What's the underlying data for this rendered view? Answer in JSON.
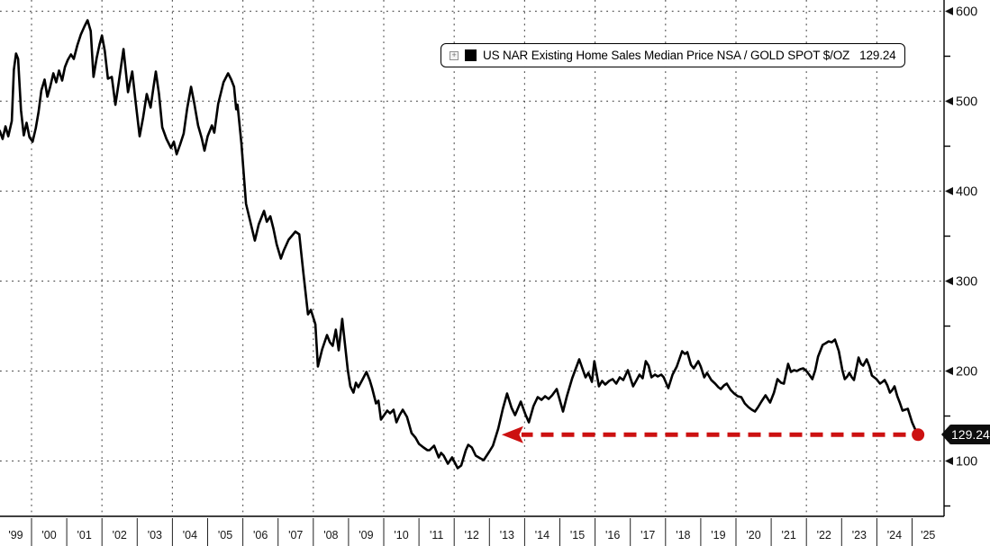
{
  "colors": {
    "line": "#000000",
    "annotation_red": "#cc1111",
    "grid": "#555555",
    "background": "#ffffff",
    "tag_bg": "#0d0d0d",
    "tag_text": "#ffffff",
    "text": "#111111"
  },
  "legend": {
    "expand_icon": "+",
    "swatch_color": "#000000",
    "label": "US NAR Existing Home Sales Median Price NSA / GOLD SPOT $/OZ",
    "value": "129.24"
  },
  "y_axis": {
    "side": "right",
    "major_ticks": [
      100,
      200,
      300,
      400,
      500,
      600
    ],
    "minor_ticks": [
      50,
      150,
      250,
      350,
      450,
      550
    ],
    "last_value_tag": "129.24"
  },
  "x_axis": {
    "year_labels": [
      "'99",
      "'00",
      "'01",
      "'02",
      "'03",
      "'04",
      "'05",
      "'06",
      "'07",
      "'08",
      "'09",
      "'10",
      "'11",
      "'12",
      "'13",
      "'14",
      "'15",
      "'16",
      "'17",
      "'18",
      "'19",
      "'20",
      "'21",
      "'22",
      "'23",
      "'24",
      "'25"
    ],
    "first_year": 1999,
    "last_year": 2025,
    "gridline_years": [
      2000,
      2002,
      2004,
      2006,
      2008,
      2010,
      2012,
      2014,
      2016,
      2018,
      2020,
      2022,
      2024
    ]
  },
  "chart_data": {
    "type": "line",
    "title": "",
    "xlabel": "",
    "ylabel": "",
    "x_unit": "decimal years since 2000-01-01",
    "xlim_years": [
      1999.1,
      2025.9
    ],
    "ylim": [
      38.5,
      612.5
    ],
    "grid": "dotted; horizontal every 100, vertical every 2 years",
    "legend_position": "top-center",
    "series": [
      {
        "name": "US NAR Existing Home Sales Median Price NSA / GOLD SPOT $/OZ",
        "color": "#000000",
        "last_value": 129.24,
        "points": [
          [
            -0.9,
            467
          ],
          [
            -0.82,
            458
          ],
          [
            -0.74,
            472
          ],
          [
            -0.66,
            461
          ],
          [
            -0.56,
            478
          ],
          [
            -0.5,
            535
          ],
          [
            -0.44,
            553
          ],
          [
            -0.38,
            547
          ],
          [
            -0.3,
            490
          ],
          [
            -0.22,
            462
          ],
          [
            -0.14,
            476
          ],
          [
            -0.06,
            460
          ],
          [
            0.03,
            455
          ],
          [
            0.12,
            470
          ],
          [
            0.2,
            488
          ],
          [
            0.28,
            512
          ],
          [
            0.37,
            524
          ],
          [
            0.45,
            505
          ],
          [
            0.53,
            516
          ],
          [
            0.62,
            531
          ],
          [
            0.7,
            521
          ],
          [
            0.78,
            534
          ],
          [
            0.87,
            523
          ],
          [
            0.95,
            538
          ],
          [
            1.03,
            546
          ],
          [
            1.12,
            552
          ],
          [
            1.2,
            547
          ],
          [
            1.3,
            562
          ],
          [
            1.4,
            574
          ],
          [
            1.5,
            583
          ],
          [
            1.59,
            590
          ],
          [
            1.68,
            578
          ],
          [
            1.76,
            527
          ],
          [
            1.85,
            548
          ],
          [
            1.93,
            563
          ],
          [
            2.0,
            573
          ],
          [
            2.08,
            556
          ],
          [
            2.17,
            525
          ],
          [
            2.28,
            527
          ],
          [
            2.38,
            496
          ],
          [
            2.48,
            522
          ],
          [
            2.61,
            558
          ],
          [
            2.74,
            510
          ],
          [
            2.8,
            522
          ],
          [
            2.86,
            533
          ],
          [
            2.96,
            498
          ],
          [
            3.07,
            461
          ],
          [
            3.17,
            482
          ],
          [
            3.27,
            508
          ],
          [
            3.38,
            493
          ],
          [
            3.46,
            515
          ],
          [
            3.53,
            533
          ],
          [
            3.62,
            508
          ],
          [
            3.71,
            471
          ],
          [
            3.83,
            458
          ],
          [
            3.96,
            448
          ],
          [
            4.04,
            455
          ],
          [
            4.12,
            441
          ],
          [
            4.22,
            452
          ],
          [
            4.32,
            464
          ],
          [
            4.42,
            492
          ],
          [
            4.53,
            516
          ],
          [
            4.62,
            498
          ],
          [
            4.73,
            473
          ],
          [
            4.83,
            459
          ],
          [
            4.91,
            445
          ],
          [
            5.0,
            461
          ],
          [
            5.12,
            473
          ],
          [
            5.19,
            465
          ],
          [
            5.3,
            497
          ],
          [
            5.45,
            521
          ],
          [
            5.58,
            531
          ],
          [
            5.67,
            524
          ],
          [
            5.75,
            516
          ],
          [
            5.81,
            491
          ],
          [
            5.85,
            496
          ],
          [
            5.96,
            453
          ],
          [
            6.09,
            386
          ],
          [
            6.2,
            368
          ],
          [
            6.34,
            345
          ],
          [
            6.45,
            363
          ],
          [
            6.6,
            378
          ],
          [
            6.68,
            366
          ],
          [
            6.78,
            372
          ],
          [
            6.87,
            358
          ],
          [
            6.96,
            341
          ],
          [
            7.08,
            325
          ],
          [
            7.16,
            334
          ],
          [
            7.3,
            346
          ],
          [
            7.49,
            355
          ],
          [
            7.6,
            352
          ],
          [
            7.72,
            308
          ],
          [
            7.85,
            263
          ],
          [
            7.93,
            268
          ],
          [
            8.06,
            252
          ],
          [
            8.13,
            205
          ],
          [
            8.25,
            224
          ],
          [
            8.39,
            240
          ],
          [
            8.47,
            232
          ],
          [
            8.55,
            228
          ],
          [
            8.64,
            246
          ],
          [
            8.72,
            223
          ],
          [
            8.82,
            258
          ],
          [
            8.98,
            201
          ],
          [
            9.05,
            183
          ],
          [
            9.14,
            176
          ],
          [
            9.21,
            187
          ],
          [
            9.28,
            182
          ],
          [
            9.39,
            190
          ],
          [
            9.51,
            199
          ],
          [
            9.6,
            190
          ],
          [
            9.67,
            181
          ],
          [
            9.78,
            164
          ],
          [
            9.85,
            167
          ],
          [
            9.92,
            146
          ],
          [
            10.1,
            156
          ],
          [
            10.18,
            153
          ],
          [
            10.28,
            157
          ],
          [
            10.36,
            143
          ],
          [
            10.45,
            151
          ],
          [
            10.54,
            157
          ],
          [
            10.66,
            149
          ],
          [
            10.79,
            131
          ],
          [
            10.9,
            126
          ],
          [
            11.0,
            119
          ],
          [
            11.13,
            115
          ],
          [
            11.24,
            112
          ],
          [
            11.3,
            112
          ],
          [
            11.43,
            117
          ],
          [
            11.56,
            104
          ],
          [
            11.63,
            109
          ],
          [
            11.7,
            106
          ],
          [
            11.82,
            97
          ],
          [
            11.94,
            104
          ],
          [
            12.1,
            92
          ],
          [
            12.2,
            95
          ],
          [
            12.33,
            112
          ],
          [
            12.4,
            118
          ],
          [
            12.5,
            115
          ],
          [
            12.61,
            106
          ],
          [
            12.74,
            103
          ],
          [
            12.84,
            101
          ],
          [
            12.99,
            110
          ],
          [
            13.1,
            117
          ],
          [
            13.25,
            136
          ],
          [
            13.38,
            158
          ],
          [
            13.5,
            175
          ],
          [
            13.63,
            159
          ],
          [
            13.73,
            151
          ],
          [
            13.89,
            166
          ],
          [
            14.02,
            152
          ],
          [
            14.12,
            143
          ],
          [
            14.25,
            161
          ],
          [
            14.37,
            171
          ],
          [
            14.48,
            168
          ],
          [
            14.58,
            172
          ],
          [
            14.68,
            169
          ],
          [
            14.78,
            173
          ],
          [
            14.91,
            180
          ],
          [
            15.09,
            155
          ],
          [
            15.2,
            172
          ],
          [
            15.35,
            192
          ],
          [
            15.55,
            213
          ],
          [
            15.73,
            193
          ],
          [
            15.81,
            198
          ],
          [
            15.91,
            188
          ],
          [
            15.98,
            211
          ],
          [
            16.11,
            183
          ],
          [
            16.2,
            189
          ],
          [
            16.29,
            185
          ],
          [
            16.4,
            189
          ],
          [
            16.5,
            191
          ],
          [
            16.6,
            186
          ],
          [
            16.7,
            193
          ],
          [
            16.8,
            190
          ],
          [
            16.93,
            201
          ],
          [
            17.08,
            183
          ],
          [
            17.18,
            190
          ],
          [
            17.26,
            196
          ],
          [
            17.35,
            192
          ],
          [
            17.44,
            211
          ],
          [
            17.52,
            206
          ],
          [
            17.6,
            193
          ],
          [
            17.7,
            196
          ],
          [
            17.78,
            194
          ],
          [
            17.88,
            196
          ],
          [
            17.95,
            193
          ],
          [
            18.08,
            181
          ],
          [
            18.2,
            196
          ],
          [
            18.32,
            205
          ],
          [
            18.47,
            222
          ],
          [
            18.55,
            219
          ],
          [
            18.62,
            221
          ],
          [
            18.72,
            207
          ],
          [
            18.8,
            203
          ],
          [
            18.93,
            211
          ],
          [
            19.0,
            205
          ],
          [
            19.1,
            193
          ],
          [
            19.18,
            198
          ],
          [
            19.3,
            190
          ],
          [
            19.41,
            186
          ],
          [
            19.5,
            182
          ],
          [
            19.57,
            180
          ],
          [
            19.66,
            184
          ],
          [
            19.74,
            186
          ],
          [
            19.85,
            179
          ],
          [
            19.95,
            175
          ],
          [
            20.05,
            172
          ],
          [
            20.15,
            171
          ],
          [
            20.25,
            164
          ],
          [
            20.35,
            160
          ],
          [
            20.45,
            157
          ],
          [
            20.54,
            155
          ],
          [
            20.63,
            160
          ],
          [
            20.72,
            166
          ],
          [
            20.84,
            173
          ],
          [
            20.97,
            165
          ],
          [
            21.08,
            176
          ],
          [
            21.18,
            191
          ],
          [
            21.28,
            187
          ],
          [
            21.36,
            186
          ],
          [
            21.48,
            208
          ],
          [
            21.56,
            199
          ],
          [
            21.65,
            201
          ],
          [
            21.73,
            200
          ],
          [
            21.82,
            202
          ],
          [
            21.91,
            203
          ],
          [
            22.0,
            200
          ],
          [
            22.08,
            196
          ],
          [
            22.17,
            191
          ],
          [
            22.25,
            201
          ],
          [
            22.33,
            216
          ],
          [
            22.46,
            229
          ],
          [
            22.55,
            231
          ],
          [
            22.63,
            233
          ],
          [
            22.72,
            232
          ],
          [
            22.81,
            235
          ],
          [
            22.92,
            222
          ],
          [
            23.02,
            201
          ],
          [
            23.09,
            191
          ],
          [
            23.16,
            194
          ],
          [
            23.22,
            198
          ],
          [
            23.29,
            193
          ],
          [
            23.35,
            190
          ],
          [
            23.48,
            215
          ],
          [
            23.55,
            208
          ],
          [
            23.61,
            206
          ],
          [
            23.71,
            213
          ],
          [
            23.79,
            205
          ],
          [
            23.86,
            195
          ],
          [
            23.99,
            191
          ],
          [
            24.09,
            186
          ],
          [
            24.16,
            188
          ],
          [
            24.22,
            190
          ],
          [
            24.3,
            184
          ],
          [
            24.37,
            176
          ],
          [
            24.44,
            179
          ],
          [
            24.5,
            183
          ],
          [
            24.58,
            172
          ],
          [
            24.65,
            165
          ],
          [
            24.73,
            156
          ],
          [
            24.8,
            157
          ],
          [
            24.88,
            158
          ],
          [
            25.0,
            143
          ],
          [
            25.08,
            136
          ],
          [
            25.17,
            129.24
          ]
        ]
      }
    ],
    "annotations": {
      "dashed_arrow": {
        "color": "#cc1111",
        "y_value": 129.24,
        "from_year": 2025.0,
        "to_year": 2013.45,
        "direction": "left",
        "style": "thick dashed, solid left arrowhead"
      },
      "end_dot": {
        "year": 2025.17,
        "value": 129.24,
        "color": "#cc1111"
      },
      "axis_tag": {
        "text": "129.24",
        "value": 129.24
      }
    }
  }
}
